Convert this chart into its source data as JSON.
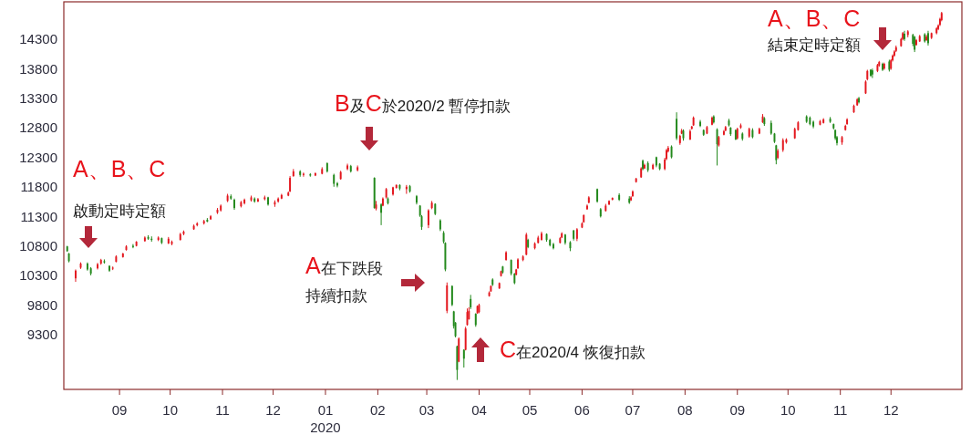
{
  "chart_data": {
    "type": "candlestick",
    "xlim": [
      "2019-07-30",
      "2021-01-12"
    ],
    "ylim": [
      8370,
      14930
    ],
    "yticks": [
      9300,
      9800,
      10300,
      10800,
      11300,
      11800,
      12300,
      12800,
      13300,
      13800,
      14300
    ],
    "xticks": [
      {
        "value": "2019-09",
        "label": "09"
      },
      {
        "value": "2019-10",
        "label": "10"
      },
      {
        "value": "2019-11",
        "label": "11"
      },
      {
        "value": "2019-12",
        "label": "12"
      },
      {
        "value": "2020-01",
        "label": "01\n2020"
      },
      {
        "value": "2020-02",
        "label": "02"
      },
      {
        "value": "2020-03",
        "label": "03"
      },
      {
        "value": "2020-04",
        "label": "04"
      },
      {
        "value": "2020-05",
        "label": "05"
      },
      {
        "value": "2020-06",
        "label": "06"
      },
      {
        "value": "2020-07",
        "label": "07"
      },
      {
        "value": "2020-08",
        "label": "08"
      },
      {
        "value": "2020-09",
        "label": "09"
      },
      {
        "value": "2020-10",
        "label": "10"
      },
      {
        "value": "2020-11",
        "label": "11"
      },
      {
        "value": "2020-12",
        "label": "12"
      }
    ],
    "x": [
      "2019-08-01",
      "2019-08-02",
      "2019-08-06",
      "2019-08-09",
      "2019-08-13",
      "2019-08-15",
      "2019-08-19",
      "2019-08-21",
      "2019-08-23",
      "2019-08-26",
      "2019-08-28",
      "2019-08-30",
      "2019-09-03",
      "2019-09-05",
      "2019-09-09",
      "2019-09-11",
      "2019-09-16",
      "2019-09-18",
      "2019-09-20",
      "2019-09-24",
      "2019-09-26",
      "2019-09-30",
      "2019-10-02",
      "2019-10-07",
      "2019-10-09",
      "2019-10-15",
      "2019-10-17",
      "2019-10-21",
      "2019-10-23",
      "2019-10-25",
      "2019-10-29",
      "2019-10-31",
      "2019-11-04",
      "2019-11-06",
      "2019-11-08",
      "2019-11-12",
      "2019-11-14",
      "2019-11-18",
      "2019-11-20",
      "2019-11-22",
      "2019-11-26",
      "2019-11-28",
      "2019-12-02",
      "2019-12-04",
      "2019-12-06",
      "2019-12-10",
      "2019-12-11",
      "2019-12-13",
      "2019-12-17",
      "2019-12-19",
      "2019-12-23",
      "2019-12-26",
      "2019-12-30",
      "2020-01-02",
      "2020-01-06",
      "2020-01-08",
      "2020-01-10",
      "2020-01-14",
      "2020-01-16",
      "2020-01-20",
      "2020-01-30",
      "2020-01-31",
      "2020-02-03",
      "2020-02-04",
      "2020-02-06",
      "2020-02-07",
      "2020-02-10",
      "2020-02-12",
      "2020-02-14",
      "2020-02-18",
      "2020-02-20",
      "2020-02-24",
      "2020-02-26",
      "2020-02-27",
      "2020-03-02",
      "2020-03-04",
      "2020-03-06",
      "2020-03-09",
      "2020-03-11",
      "2020-03-12",
      "2020-03-13",
      "2020-03-16",
      "2020-03-17",
      "2020-03-18",
      "2020-03-19",
      "2020-03-20",
      "2020-03-23",
      "2020-03-24",
      "2020-03-25",
      "2020-03-26",
      "2020-03-27",
      "2020-03-30",
      "2020-03-31",
      "2020-04-01",
      "2020-04-07",
      "2020-04-08",
      "2020-04-09",
      "2020-04-13",
      "2020-04-14",
      "2020-04-15",
      "2020-04-17",
      "2020-04-20",
      "2020-04-22",
      "2020-04-23",
      "2020-04-24",
      "2020-04-27",
      "2020-04-29",
      "2020-04-30",
      "2020-05-04",
      "2020-05-06",
      "2020-05-08",
      "2020-05-11",
      "2020-05-13",
      "2020-05-15",
      "2020-05-19",
      "2020-05-20",
      "2020-05-22",
      "2020-05-25",
      "2020-05-27",
      "2020-05-29",
      "2020-06-01",
      "2020-06-02",
      "2020-06-04",
      "2020-06-05",
      "2020-06-10",
      "2020-06-12",
      "2020-06-15",
      "2020-06-17",
      "2020-06-19",
      "2020-06-23",
      "2020-06-29",
      "2020-06-30",
      "2020-07-01",
      "2020-07-03",
      "2020-07-06",
      "2020-07-07",
      "2020-07-08",
      "2020-07-10",
      "2020-07-13",
      "2020-07-15",
      "2020-07-17",
      "2020-07-20",
      "2020-07-21",
      "2020-07-22",
      "2020-07-24",
      "2020-07-27",
      "2020-07-29",
      "2020-07-30",
      "2020-07-31",
      "2020-08-04",
      "2020-08-05",
      "2020-08-06",
      "2020-08-10",
      "2020-08-12",
      "2020-08-14",
      "2020-08-17",
      "2020-08-18",
      "2020-08-20",
      "2020-08-21",
      "2020-08-24",
      "2020-08-25",
      "2020-08-27",
      "2020-08-28",
      "2020-08-31",
      "2020-09-01",
      "2020-09-03",
      "2020-09-04",
      "2020-09-08",
      "2020-09-10",
      "2020-09-14",
      "2020-09-16",
      "2020-09-17",
      "2020-09-21",
      "2020-09-23",
      "2020-09-24",
      "2020-09-25",
      "2020-09-28",
      "2020-09-30",
      "2020-10-05",
      "2020-10-07",
      "2020-10-12",
      "2020-10-14",
      "2020-10-16",
      "2020-10-20",
      "2020-10-22",
      "2020-10-26",
      "2020-10-28",
      "2020-10-29",
      "2020-10-30",
      "2020-11-02",
      "2020-11-04",
      "2020-11-05",
      "2020-11-09",
      "2020-11-11",
      "2020-11-12",
      "2020-11-16",
      "2020-11-17",
      "2020-11-19",
      "2020-11-20",
      "2020-11-23",
      "2020-11-24",
      "2020-11-26",
      "2020-11-27",
      "2020-11-30",
      "2020-12-01",
      "2020-12-02",
      "2020-12-03",
      "2020-12-04",
      "2020-12-07",
      "2020-12-08",
      "2020-12-09",
      "2020-12-11",
      "2020-12-14",
      "2020-12-15",
      "2020-12-16",
      "2020-12-18",
      "2020-12-21",
      "2020-12-22",
      "2020-12-23",
      "2020-12-25",
      "2020-12-28",
      "2020-12-29",
      "2020-12-30",
      "2020-12-31"
    ],
    "ohlc": [
      [
        10790,
        10800,
        10700,
        10710
      ],
      [
        10670,
        10680,
        10520,
        10540
      ],
      [
        10250,
        10400,
        10190,
        10380
      ],
      [
        10430,
        10520,
        10410,
        10500
      ],
      [
        10500,
        10520,
        10380,
        10400
      ],
      [
        10420,
        10440,
        10300,
        10330
      ],
      [
        10420,
        10510,
        10400,
        10490
      ],
      [
        10500,
        10580,
        10480,
        10560
      ],
      [
        10540,
        10570,
        10500,
        10520
      ],
      [
        10460,
        10470,
        10360,
        10380
      ],
      [
        10420,
        10450,
        10390,
        10430
      ],
      [
        10530,
        10640,
        10520,
        10620
      ],
      [
        10610,
        10680,
        10600,
        10670
      ],
      [
        10730,
        10810,
        10720,
        10790
      ],
      [
        10800,
        10830,
        10760,
        10780
      ],
      [
        10800,
        10880,
        10790,
        10870
      ],
      [
        10880,
        10960,
        10870,
        10940
      ],
      [
        10950,
        10980,
        10900,
        10920
      ],
      [
        10920,
        10960,
        10870,
        10900
      ],
      [
        10900,
        10960,
        10880,
        10940
      ],
      [
        10930,
        10940,
        10830,
        10850
      ],
      [
        10840,
        10950,
        10830,
        10920
      ],
      [
        10830,
        10890,
        10810,
        10870
      ],
      [
        10900,
        11020,
        10890,
        11000
      ],
      [
        11000,
        11060,
        10980,
        11040
      ],
      [
        11080,
        11160,
        11070,
        11140
      ],
      [
        11150,
        11200,
        11130,
        11180
      ],
      [
        11180,
        11240,
        11160,
        11220
      ],
      [
        11240,
        11270,
        11200,
        11210
      ],
      [
        11250,
        11320,
        11240,
        11300
      ],
      [
        11360,
        11440,
        11340,
        11410
      ],
      [
        11400,
        11500,
        11380,
        11480
      ],
      [
        11560,
        11680,
        11540,
        11650
      ],
      [
        11640,
        11670,
        11580,
        11600
      ],
      [
        11580,
        11600,
        11410,
        11440
      ],
      [
        11470,
        11560,
        11450,
        11540
      ],
      [
        11520,
        11600,
        11500,
        11580
      ],
      [
        11570,
        11650,
        11550,
        11620
      ],
      [
        11600,
        11620,
        11530,
        11550
      ],
      [
        11550,
        11610,
        11540,
        11590
      ],
      [
        11590,
        11650,
        11570,
        11620
      ],
      [
        11620,
        11630,
        11480,
        11500
      ],
      [
        11500,
        11570,
        11460,
        11540
      ],
      [
        11550,
        11620,
        11530,
        11600
      ],
      [
        11600,
        11680,
        11590,
        11660
      ],
      [
        11650,
        11720,
        11640,
        11700
      ],
      [
        11720,
        11980,
        11710,
        11950
      ],
      [
        11980,
        12100,
        11970,
        12060
      ],
      [
        12060,
        12080,
        11970,
        12000
      ],
      [
        12000,
        12040,
        11970,
        12020
      ],
      [
        12010,
        12030,
        11970,
        11990
      ],
      [
        11990,
        12040,
        11980,
        12030
      ],
      [
        12020,
        12130,
        12010,
        12100
      ],
      [
        12200,
        12210,
        12040,
        12060
      ],
      [
        12000,
        12020,
        11800,
        11850
      ],
      [
        11860,
        11880,
        11790,
        11820
      ],
      [
        11930,
        12070,
        11920,
        12050
      ],
      [
        12100,
        12190,
        12080,
        12160
      ],
      [
        12150,
        12170,
        12040,
        12060
      ],
      [
        12080,
        12160,
        12060,
        12130
      ],
      [
        11950,
        11960,
        11430,
        11440
      ],
      [
        11430,
        11560,
        11400,
        11500
      ],
      [
        11500,
        11520,
        11150,
        11360
      ],
      [
        11480,
        11620,
        11470,
        11600
      ],
      [
        11620,
        11780,
        11600,
        11760
      ],
      [
        11600,
        11620,
        11500,
        11520
      ],
      [
        11670,
        11800,
        11650,
        11790
      ],
      [
        11780,
        11840,
        11770,
        11830
      ],
      [
        11830,
        11840,
        11740,
        11770
      ],
      [
        11760,
        11830,
        11680,
        11800
      ],
      [
        11810,
        11830,
        11700,
        11720
      ],
      [
        11640,
        11660,
        11500,
        11530
      ],
      [
        11480,
        11490,
        11290,
        11310
      ],
      [
        11300,
        11320,
        11070,
        11120
      ],
      [
        11150,
        11420,
        11100,
        11400
      ],
      [
        11440,
        11560,
        11420,
        11530
      ],
      [
        11510,
        11520,
        11320,
        11340
      ],
      [
        11230,
        11250,
        11050,
        11080
      ],
      [
        11020,
        11050,
        10840,
        10870
      ],
      [
        10850,
        10860,
        10370,
        10400
      ],
      [
        9700,
        10180,
        9660,
        10130
      ],
      [
        10120,
        10130,
        9780,
        9800
      ],
      [
        9690,
        9700,
        9400,
        9440
      ],
      [
        9500,
        9510,
        9250,
        9270
      ],
      [
        9100,
        9110,
        8530,
        8700
      ],
      [
        8840,
        9250,
        8830,
        9230
      ],
      [
        9040,
        9050,
        8740,
        8890
      ],
      [
        9040,
        9430,
        9030,
        9400
      ],
      [
        9460,
        9740,
        9450,
        9680
      ],
      [
        9560,
        9760,
        9550,
        9700
      ],
      [
        9900,
        9970,
        9730,
        9760
      ],
      [
        9650,
        9660,
        9430,
        9460
      ],
      [
        9660,
        9790,
        9650,
        9780
      ],
      [
        9680,
        9820,
        9660,
        9800
      ],
      [
        9950,
        10030,
        9940,
        10010
      ],
      [
        10030,
        10130,
        10020,
        10120
      ],
      [
        10230,
        10250,
        10120,
        10140
      ],
      [
        10080,
        10180,
        10070,
        10170
      ],
      [
        10290,
        10380,
        10280,
        10370
      ],
      [
        10450,
        10460,
        10330,
        10350
      ],
      [
        10560,
        10710,
        10550,
        10690
      ],
      [
        10560,
        10570,
        10300,
        10330
      ],
      [
        10330,
        10340,
        10150,
        10170
      ],
      [
        10310,
        10410,
        10300,
        10400
      ],
      [
        10420,
        10590,
        10410,
        10570
      ],
      [
        10560,
        10640,
        10540,
        10620
      ],
      [
        10650,
        11020,
        10640,
        10990
      ],
      [
        10900,
        10920,
        10760,
        10780
      ],
      [
        10760,
        10860,
        10740,
        10840
      ],
      [
        10850,
        10970,
        10840,
        10940
      ],
      [
        10900,
        11040,
        10890,
        11010
      ],
      [
        11000,
        11010,
        10870,
        10900
      ],
      [
        10900,
        10920,
        10790,
        10810
      ],
      [
        10830,
        10850,
        10740,
        10760
      ],
      [
        10850,
        10950,
        10840,
        10930
      ],
      [
        10940,
        11030,
        10930,
        11010
      ],
      [
        10990,
        11000,
        10820,
        10850
      ],
      [
        10860,
        10880,
        10710,
        10760
      ],
      [
        11060,
        11070,
        10890,
        10920
      ],
      [
        10920,
        11100,
        10880,
        11080
      ],
      [
        11110,
        11200,
        11100,
        11180
      ],
      [
        11200,
        11330,
        11190,
        11320
      ],
      [
        11420,
        11500,
        11410,
        11480
      ],
      [
        11530,
        11640,
        11520,
        11620
      ],
      [
        11760,
        11770,
        11530,
        11550
      ],
      [
        11420,
        11440,
        11280,
        11300
      ],
      [
        11390,
        11510,
        11380,
        11480
      ],
      [
        11500,
        11570,
        11490,
        11560
      ],
      [
        11580,
        11620,
        11570,
        11610
      ],
      [
        11660,
        11690,
        11560,
        11580
      ],
      [
        11600,
        11640,
        11510,
        11530
      ],
      [
        11570,
        11640,
        11560,
        11620
      ],
      [
        11640,
        11740,
        11630,
        11720
      ],
      [
        11880,
        11950,
        11870,
        11940
      ],
      [
        11960,
        12130,
        11950,
        12110
      ],
      [
        12240,
        12260,
        12080,
        12100
      ],
      [
        12110,
        12190,
        12100,
        12170
      ],
      [
        12200,
        12230,
        12050,
        12080
      ],
      [
        12100,
        12190,
        12090,
        12170
      ],
      [
        12300,
        12310,
        12130,
        12160
      ],
      [
        12190,
        12200,
        12080,
        12100
      ],
      [
        12100,
        12290,
        12080,
        12260
      ],
      [
        12270,
        12440,
        12250,
        12420
      ],
      [
        12400,
        12490,
        12380,
        12460
      ],
      [
        12480,
        12500,
        12280,
        12300
      ],
      [
        12950,
        13060,
        12590,
        12620
      ],
      [
        12540,
        12680,
        12510,
        12660
      ],
      [
        12700,
        12780,
        12690,
        12750
      ],
      [
        12750,
        12770,
        12580,
        12620
      ],
      [
        12600,
        12770,
        12590,
        12740
      ],
      [
        12780,
        12830,
        12770,
        12820
      ],
      [
        12840,
        12990,
        12830,
        12970
      ],
      [
        12900,
        12930,
        12810,
        12830
      ],
      [
        12760,
        12770,
        12660,
        12680
      ],
      [
        12700,
        12830,
        12690,
        12810
      ],
      [
        12850,
        12990,
        12840,
        12970
      ],
      [
        12990,
        13010,
        12870,
        12890
      ],
      [
        12770,
        12790,
        12160,
        12520
      ],
      [
        12500,
        12660,
        12480,
        12640
      ],
      [
        12680,
        12760,
        12670,
        12740
      ],
      [
        12750,
        12830,
        12740,
        12810
      ],
      [
        12920,
        12950,
        12820,
        12840
      ],
      [
        12800,
        12810,
        12660,
        12690
      ],
      [
        12760,
        12770,
        12590,
        12600
      ],
      [
        12620,
        12800,
        12600,
        12780
      ],
      [
        12800,
        12870,
        12780,
        12840
      ],
      [
        12700,
        12720,
        12580,
        12610
      ],
      [
        12650,
        12800,
        12630,
        12780
      ],
      [
        12760,
        12790,
        12620,
        12640
      ],
      [
        12700,
        12800,
        12690,
        12780
      ],
      [
        12890,
        13030,
        12880,
        12990
      ],
      [
        12960,
        12980,
        12830,
        12860
      ],
      [
        12880,
        12920,
        12680,
        12700
      ],
      [
        12700,
        12710,
        12540,
        12560
      ],
      [
        12500,
        12510,
        12180,
        12250
      ],
      [
        12290,
        12440,
        12270,
        12410
      ],
      [
        12420,
        12620,
        12390,
        12590
      ],
      [
        12550,
        12620,
        12530,
        12600
      ],
      [
        12620,
        12800,
        12610,
        12780
      ],
      [
        12760,
        12910,
        12750,
        12890
      ],
      [
        12990,
        13010,
        12880,
        12900
      ],
      [
        12970,
        12990,
        12840,
        12860
      ],
      [
        12900,
        12920,
        12790,
        12820
      ],
      [
        12850,
        12930,
        12840,
        12910
      ],
      [
        12880,
        12960,
        12870,
        12940
      ],
      [
        12950,
        12980,
        12880,
        12900
      ],
      [
        12860,
        12870,
        12770,
        12790
      ],
      [
        12760,
        12770,
        12590,
        12620
      ],
      [
        12640,
        12660,
        12500,
        12540
      ],
      [
        12550,
        12660,
        12510,
        12640
      ],
      [
        12760,
        12850,
        12750,
        12830
      ],
      [
        12860,
        12960,
        12850,
        12940
      ],
      [
        13060,
        13190,
        13050,
        13170
      ],
      [
        13180,
        13300,
        13170,
        13280
      ],
      [
        13300,
        13320,
        13210,
        13230
      ],
      [
        13380,
        13600,
        13370,
        13580
      ],
      [
        13620,
        13780,
        13600,
        13760
      ],
      [
        13780,
        13790,
        13660,
        13680
      ],
      [
        13770,
        13800,
        13640,
        13700
      ],
      [
        13760,
        13880,
        13740,
        13860
      ],
      [
        13850,
        13930,
        13830,
        13910
      ],
      [
        13880,
        13900,
        13760,
        13780
      ],
      [
        13800,
        13900,
        13780,
        13880
      ],
      [
        13920,
        13950,
        13750,
        13780
      ],
      [
        13800,
        13960,
        13780,
        13940
      ],
      [
        13940,
        14040,
        13920,
        14020
      ],
      [
        14020,
        14110,
        14000,
        14090
      ],
      [
        14100,
        14190,
        14080,
        14160
      ],
      [
        14180,
        14320,
        14170,
        14300
      ],
      [
        14300,
        14420,
        14280,
        14400
      ],
      [
        14390,
        14440,
        14270,
        14300
      ],
      [
        14370,
        14450,
        14330,
        14430
      ],
      [
        14370,
        14390,
        14180,
        14220
      ],
      [
        14340,
        14350,
        14080,
        14120
      ],
      [
        14200,
        14300,
        14190,
        14280
      ],
      [
        14260,
        14370,
        14250,
        14350
      ],
      [
        14380,
        14400,
        14240,
        14260
      ],
      [
        14280,
        14370,
        14270,
        14340
      ],
      [
        14400,
        14440,
        14190,
        14230
      ],
      [
        14320,
        14410,
        14300,
        14400
      ],
      [
        14400,
        14500,
        14380,
        14480
      ],
      [
        14470,
        14550,
        14450,
        14530
      ],
      [
        14540,
        14660,
        14520,
        14640
      ],
      [
        14620,
        14760,
        14600,
        14740
      ]
    ],
    "colors": [
      "#23891c",
      "#23891c",
      "#e3171e",
      "#e3171e",
      "#23891c",
      "#23891c",
      "#e3171e",
      "#e3171e",
      "#23891c",
      "#23891c",
      "#e3171e",
      "#e3171e",
      "#e3171e",
      "#e3171e",
      "#23891c",
      "#e3171e",
      "#e3171e",
      "#23891c",
      "#23891c",
      "#e3171e",
      "#23891c",
      "#e3171e",
      "#e3171e",
      "#e3171e",
      "#e3171e",
      "#e3171e",
      "#e3171e",
      "#e3171e",
      "#23891c",
      "#e3171e",
      "#e3171e",
      "#e3171e",
      "#e3171e",
      "#23891c",
      "#23891c",
      "#e3171e",
      "#e3171e",
      "#e3171e",
      "#23891c",
      "#e3171e",
      "#e3171e",
      "#23891c",
      "#e3171e",
      "#e3171e",
      "#e3171e",
      "#e3171e",
      "#e3171e",
      "#e3171e",
      "#23891c",
      "#e3171e",
      "#23891c",
      "#e3171e",
      "#e3171e",
      "#23891c",
      "#23891c",
      "#23891c",
      "#e3171e",
      "#e3171e",
      "#23891c",
      "#e3171e",
      "#23891c",
      "#e3171e",
      "#23891c",
      "#e3171e",
      "#e3171e",
      "#23891c",
      "#e3171e",
      "#e3171e",
      "#23891c",
      "#e3171e",
      "#23891c",
      "#23891c",
      "#23891c",
      "#23891c",
      "#e3171e",
      "#e3171e",
      "#23891c",
      "#23891c",
      "#23891c",
      "#23891c",
      "#e3171e",
      "#23891c",
      "#23891c",
      "#23891c",
      "#23891c",
      "#e3171e",
      "#23891c",
      "#e3171e",
      "#e3171e",
      "#e3171e",
      "#23891c",
      "#23891c",
      "#e3171e",
      "#e3171e",
      "#e3171e",
      "#e3171e",
      "#23891c",
      "#e3171e",
      "#e3171e",
      "#23891c",
      "#e3171e",
      "#23891c",
      "#23891c",
      "#e3171e",
      "#e3171e",
      "#e3171e",
      "#e3171e",
      "#23891c",
      "#e3171e",
      "#e3171e",
      "#e3171e",
      "#23891c",
      "#23891c",
      "#23891c",
      "#e3171e",
      "#e3171e",
      "#23891c",
      "#23891c",
      "#23891c",
      "#e3171e",
      "#e3171e",
      "#e3171e",
      "#e3171e",
      "#e3171e",
      "#23891c",
      "#23891c",
      "#e3171e",
      "#e3171e",
      "#e3171e",
      "#23891c",
      "#23891c",
      "#e3171e",
      "#e3171e",
      "#e3171e",
      "#e3171e",
      "#23891c",
      "#e3171e",
      "#23891c",
      "#e3171e",
      "#23891c",
      "#23891c",
      "#e3171e",
      "#e3171e",
      "#e3171e",
      "#23891c",
      "#23891c",
      "#e3171e",
      "#e3171e",
      "#23891c",
      "#e3171e",
      "#e3171e",
      "#e3171e",
      "#23891c",
      "#23891c",
      "#e3171e",
      "#e3171e",
      "#23891c",
      "#23891c",
      "#e3171e",
      "#e3171e",
      "#e3171e",
      "#23891c",
      "#23891c",
      "#23891c",
      "#e3171e",
      "#e3171e",
      "#23891c",
      "#e3171e",
      "#23891c",
      "#e3171e",
      "#e3171e",
      "#23891c",
      "#23891c",
      "#23891c",
      "#23891c",
      "#e3171e",
      "#e3171e",
      "#e3171e",
      "#e3171e",
      "#e3171e",
      "#23891c",
      "#23891c",
      "#23891c",
      "#e3171e",
      "#e3171e",
      "#23891c",
      "#23891c",
      "#23891c",
      "#23891c",
      "#e3171e",
      "#e3171e",
      "#e3171e",
      "#e3171e",
      "#e3171e",
      "#23891c",
      "#e3171e",
      "#e3171e",
      "#23891c",
      "#23891c",
      "#e3171e",
      "#e3171e",
      "#23891c",
      "#e3171e",
      "#23891c",
      "#e3171e",
      "#e3171e",
      "#e3171e",
      "#e3171e",
      "#e3171e",
      "#e3171e",
      "#23891c",
      "#e3171e",
      "#23891c",
      "#23891c",
      "#e3171e",
      "#e3171e",
      "#23891c",
      "#e3171e",
      "#23891c",
      "#e3171e",
      "#e3171e",
      "#e3171e",
      "#e3171e",
      "#e3171e"
    ],
    "annotations": [
      "A、B、C\n啟動定時定額",
      "B及C於2020/2 暫停扣款",
      "A在下跌段持續扣款",
      "C在2020/4 恢復扣款",
      "A、B、C\n結束定時定額"
    ]
  }
}
